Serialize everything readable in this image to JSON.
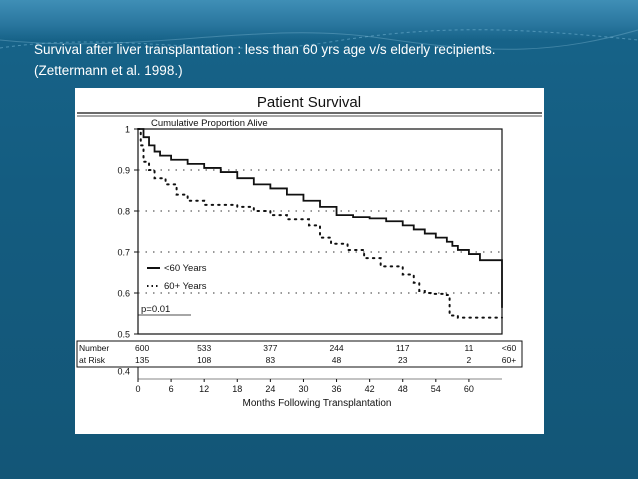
{
  "slide": {
    "title_line1": "Survival after liver transplantation : less than 60 yrs age v/s elderly recipients.",
    "title_line2": "(Zettermann et al. 1998.)"
  },
  "colors": {
    "background": "#145c80",
    "figure_bg": "#ffffff",
    "ink": "#111111"
  },
  "chart_data": {
    "type": "line",
    "title": "Patient Survival",
    "subtitle": "Cumulative Proportion Alive",
    "xlabel": "Months Following Transplantation",
    "ylabel": "",
    "xlim": [
      0,
      66
    ],
    "ylim": [
      0.5,
      1.0
    ],
    "x_ticks": [
      0,
      6,
      12,
      18,
      24,
      30,
      36,
      42,
      48,
      54,
      60
    ],
    "y_ticks": [
      0.4,
      0.5,
      0.6,
      0.7,
      0.8,
      0.9,
      1
    ],
    "y_tick_labels": [
      "0.4",
      "0.5",
      "0.6",
      "0.7",
      "0.8",
      "0.9",
      "1"
    ],
    "grid": "dotted horizontal",
    "annotation": "p=0.01",
    "series": [
      {
        "name": "<60 Years",
        "style": "solid",
        "x": [
          0,
          1,
          2,
          3,
          4,
          6,
          9,
          12,
          15,
          18,
          21,
          24,
          27,
          30,
          33,
          36,
          39,
          42,
          45,
          48,
          50,
          52,
          54,
          56,
          57,
          58,
          60,
          62,
          66
        ],
        "y": [
          1.0,
          0.98,
          0.96,
          0.945,
          0.935,
          0.925,
          0.915,
          0.905,
          0.895,
          0.88,
          0.865,
          0.855,
          0.84,
          0.825,
          0.81,
          0.79,
          0.785,
          0.782,
          0.775,
          0.765,
          0.755,
          0.745,
          0.735,
          0.725,
          0.715,
          0.705,
          0.695,
          0.68,
          0.565
        ]
      },
      {
        "name": "60+ Years",
        "style": "dotted",
        "x": [
          0,
          0.5,
          1,
          2,
          3,
          5,
          7,
          9,
          12,
          18,
          21,
          24,
          27,
          31,
          33,
          35,
          38,
          41,
          44,
          48,
          50,
          51,
          52,
          53,
          56,
          56.5,
          58,
          60,
          63,
          66
        ],
        "y": [
          1.0,
          0.96,
          0.92,
          0.9,
          0.88,
          0.865,
          0.84,
          0.825,
          0.815,
          0.81,
          0.8,
          0.79,
          0.78,
          0.765,
          0.735,
          0.72,
          0.705,
          0.685,
          0.665,
          0.645,
          0.625,
          0.605,
          0.6,
          0.598,
          0.595,
          0.545,
          0.54,
          0.54,
          0.54,
          0.54
        ]
      }
    ],
    "risk_table": {
      "header_line1": "Number",
      "header_line2": "at Risk",
      "x": [
        0,
        12,
        24,
        36,
        48,
        60
      ],
      "rows": [
        {
          "label": "<60",
          "values": [
            "600",
            "533",
            "377",
            "244",
            "117",
            "11"
          ]
        },
        {
          "label": "60+",
          "values": [
            "135",
            "108",
            "83",
            "48",
            "23",
            "2"
          ]
        }
      ]
    }
  }
}
